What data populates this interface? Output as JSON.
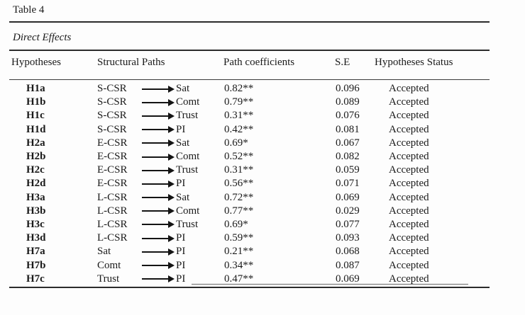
{
  "page": {
    "title": "Table 4",
    "section_title": "Direct Effects"
  },
  "colors": {
    "background": "#fdfdfd",
    "text": "#1a1a1a",
    "rule": "#2b2b2b"
  },
  "table": {
    "columns": [
      {
        "label": "Hypotheses"
      },
      {
        "label": "Structural Paths"
      },
      {
        "label": "Path coefficients"
      },
      {
        "label": "S.E"
      },
      {
        "label": "Hypotheses Status"
      }
    ],
    "arrow_icon": "arrow-right",
    "rows": [
      {
        "hypothesis": "H1a",
        "source": "S-CSR",
        "target": "Sat",
        "coefficient": "0.82**",
        "se": "0.096",
        "status": "Accepted"
      },
      {
        "hypothesis": "H1b",
        "source": "S-CSR",
        "target": "Comt",
        "coefficient": "0.79**",
        "se": "0.089",
        "status": "Accepted"
      },
      {
        "hypothesis": "H1c",
        "source": "S-CSR",
        "target": "Trust",
        "coefficient": "0.31**",
        "se": "0.076",
        "status": "Accepted"
      },
      {
        "hypothesis": "H1d",
        "source": "S-CSR",
        "target": "PI",
        "coefficient": "0.42**",
        "se": "0.081",
        "status": "Accepted"
      },
      {
        "hypothesis": "H2a",
        "source": "E-CSR",
        "target": "Sat",
        "coefficient": "0.69*",
        "se": "0.067",
        "status": "Accepted"
      },
      {
        "hypothesis": "H2b",
        "source": "E-CSR",
        "target": "Comt",
        "coefficient": "0.52**",
        "se": "0.082",
        "status": "Accepted"
      },
      {
        "hypothesis": "H2c",
        "source": "E-CSR",
        "target": "Trust",
        "coefficient": "0.31**",
        "se": "0.059",
        "status": "Accepted"
      },
      {
        "hypothesis": "H2d",
        "source": "E-CSR",
        "target": "PI",
        "coefficient": "0.56**",
        "se": "0.071",
        "status": "Accepted"
      },
      {
        "hypothesis": "H3a",
        "source": "L-CSR",
        "target": "Sat",
        "coefficient": "0.72**",
        "se": "0.069",
        "status": "Accepted"
      },
      {
        "hypothesis": "H3b",
        "source": "L-CSR",
        "target": "Comt",
        "coefficient": "0.77**",
        "se": "0.029",
        "status": "Accepted"
      },
      {
        "hypothesis": "H3c",
        "source": "L-CSR",
        "target": "Trust",
        "coefficient": "0.69*",
        "se": "0.077",
        "status": "Accepted"
      },
      {
        "hypothesis": "H3d",
        "source": "L-CSR",
        "target": "PI",
        "coefficient": "0.59**",
        "se": "0.093",
        "status": "Accepted"
      },
      {
        "hypothesis": "H7a",
        "source": "Sat",
        "target": "PI",
        "coefficient": "0.21**",
        "se": "0.068",
        "status": "Accepted"
      },
      {
        "hypothesis": "H7b",
        "source": "Comt",
        "target": "PI",
        "coefficient": "0.34**",
        "se": "0.087",
        "status": "Accepted"
      },
      {
        "hypothesis": "H7c",
        "source": "Trust",
        "target": "PI",
        "coefficient": "0.47**",
        "se": "0.069",
        "status": "Accepted"
      }
    ]
  }
}
